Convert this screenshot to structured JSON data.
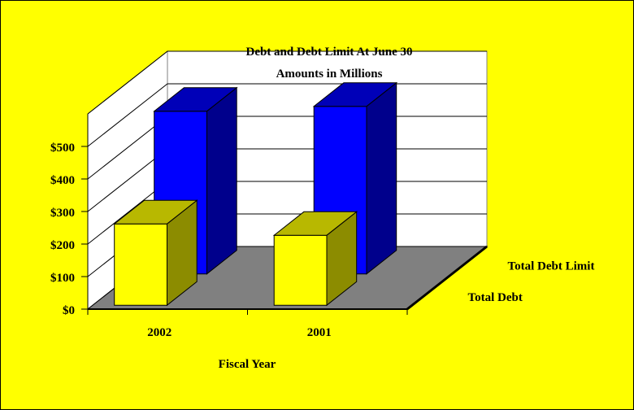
{
  "chart_data": {
    "type": "bar",
    "title": "Debt and Debt Limit At June 30",
    "subtitle": "Amounts in Millions",
    "xlabel": "Fiscal Year",
    "categories": [
      "2002",
      "2001"
    ],
    "series": [
      {
        "name": "Total Debt",
        "values": [
          250,
          215
        ],
        "color": "#ffff00"
      },
      {
        "name": "Total Debt Limit",
        "values": [
          500,
          515
        ],
        "color": "#0000ff"
      }
    ],
    "y_ticks": [
      "$0",
      "$100",
      "$200",
      "$300",
      "$400",
      "$500"
    ],
    "ylim": [
      0,
      600
    ],
    "grid": true,
    "style": "3d",
    "background_color": "#ffff00",
    "floor_color": "#808080",
    "wall_color": "#ffffff"
  }
}
